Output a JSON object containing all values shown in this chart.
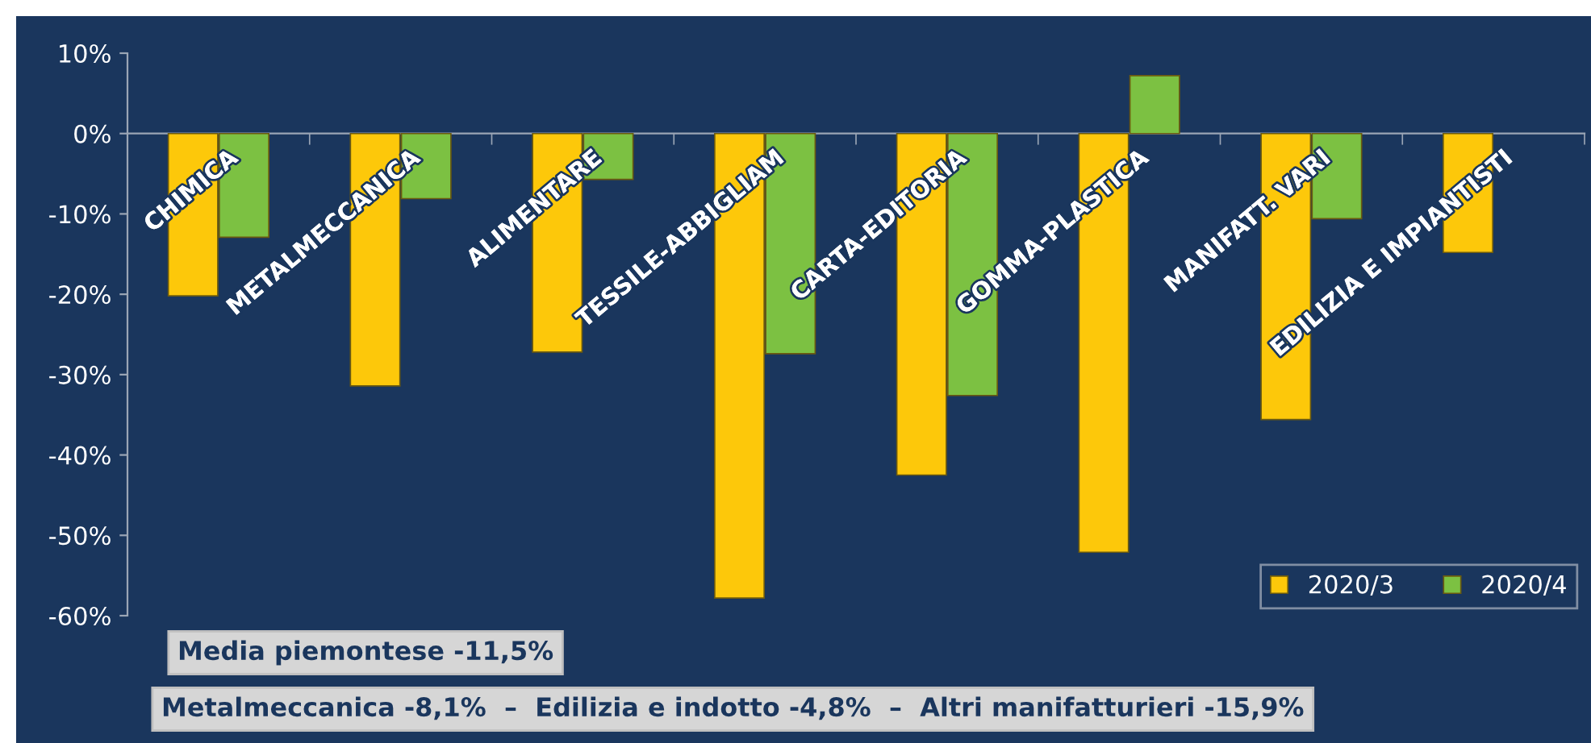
{
  "chart_data": {
    "type": "bar",
    "categories": [
      "CHIMICA",
      "METALMECCANICA",
      "ALIMENTARE",
      "TESSILE-ABBIGLIAM",
      "CARTA-EDITORIA",
      "GOMMA-PLASTICA",
      "MANIFATT. VARI",
      "EDILIZIA E IMPIANTISTI"
    ],
    "series": [
      {
        "name": "2020/3",
        "color": "#fdc80a",
        "values": [
          -20.2,
          -31.4,
          -27.2,
          -57.8,
          -42.5,
          -52.1,
          -35.6,
          -14.8
        ]
      },
      {
        "name": "2020/4",
        "color": "#7cc142",
        "values": [
          -12.9,
          -8.1,
          -5.7,
          -27.4,
          -32.6,
          7.2,
          -10.6,
          null
        ]
      }
    ],
    "ylim": [
      -60,
      10
    ],
    "yticks": [
      {
        "value": -60,
        "label": "-60%"
      },
      {
        "value": -50,
        "label": "-50%"
      },
      {
        "value": -40,
        "label": "-40%"
      },
      {
        "value": -30,
        "label": "-30%"
      },
      {
        "value": -20,
        "label": "-20%"
      },
      {
        "value": -10,
        "label": "-10%"
      },
      {
        "value": 0,
        "label": "0%"
      },
      {
        "value": 10,
        "label": "10%"
      }
    ],
    "grid": false,
    "legend": "bottom right",
    "annotations": [
      "Media piemontese -11,5%",
      "Metalmeccanica -8,1%  –  Edilizia e indotto -4,8%  –  Altri manifatturieri -15,9%"
    ]
  }
}
